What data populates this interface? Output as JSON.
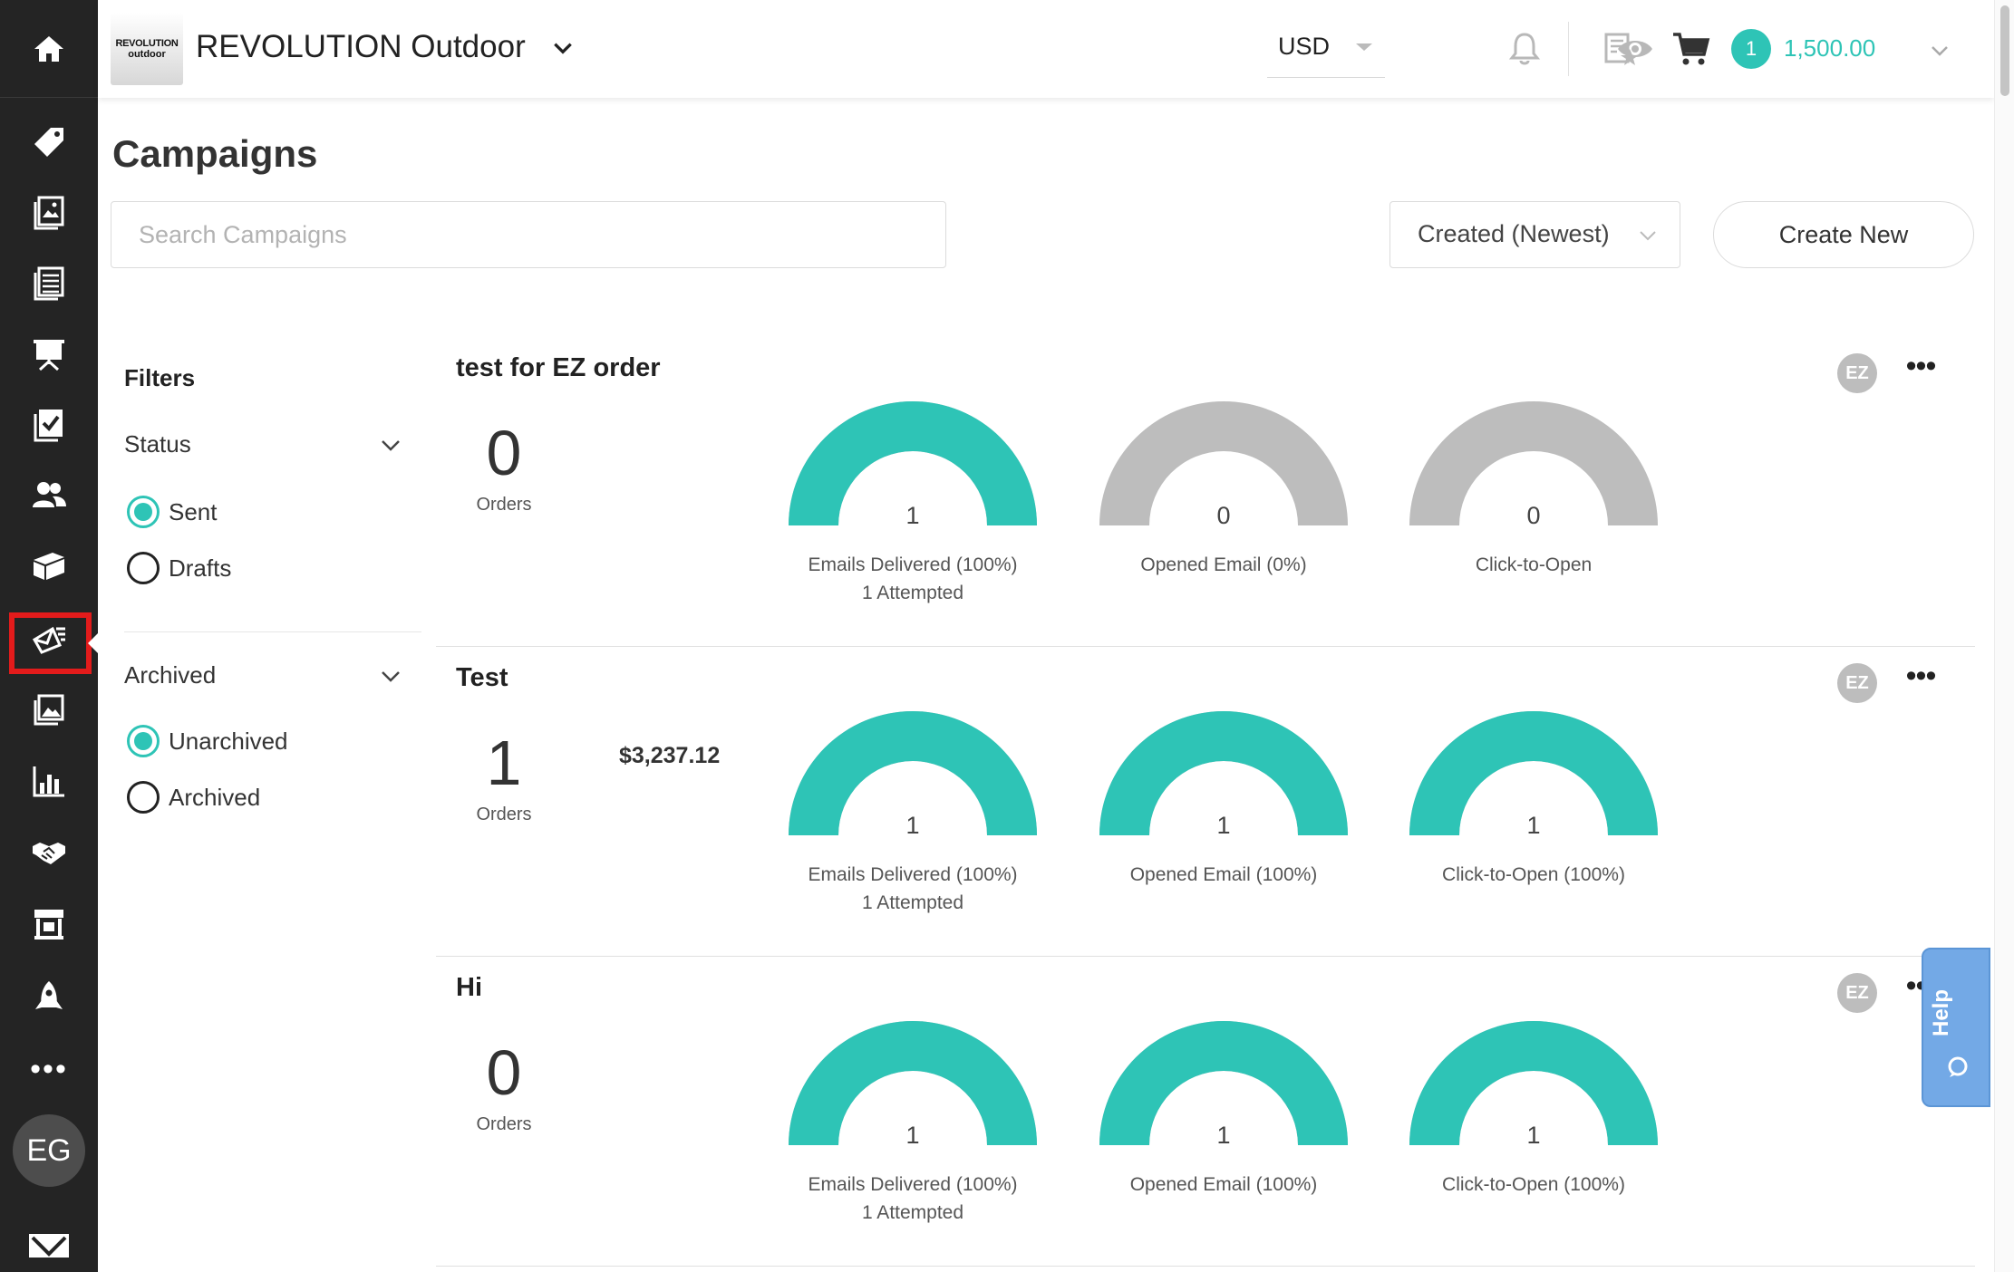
{
  "header": {
    "brand_logo_line1": "REVOLUTION",
    "brand_logo_line2": "outdoor",
    "brand_name": "REVOLUTION Outdoor",
    "currency": "USD",
    "cart_count": "1",
    "cart_total": "1,500.00"
  },
  "sidebar": {
    "active_item": "campaigns",
    "items": [
      "home",
      "tag",
      "catalog",
      "list",
      "presentation",
      "checklist",
      "contacts",
      "box",
      "campaigns",
      "gallery",
      "reports",
      "partners",
      "store",
      "rocket"
    ],
    "more_label": "•••",
    "avatar_initials": "EG"
  },
  "page": {
    "title": "Campaigns",
    "search_placeholder": "Search Campaigns",
    "sort_value": "Created (Newest)",
    "create_new_label": "Create New"
  },
  "filters": {
    "title": "Filters",
    "status": {
      "label": "Status",
      "options": [
        {
          "label": "Sent",
          "selected": true
        },
        {
          "label": "Drafts",
          "selected": false
        }
      ]
    },
    "archived": {
      "label": "Archived",
      "options": [
        {
          "label": "Unarchived",
          "selected": true
        },
        {
          "label": "Archived",
          "selected": false
        }
      ]
    }
  },
  "campaigns": [
    {
      "name": "test for EZ order",
      "owner_initials": "EZ",
      "more_label": "•••",
      "orders": "0",
      "orders_label": "Orders",
      "revenue": "",
      "gauges": [
        {
          "value": "1",
          "label": "Emails Delivered (100%)",
          "sub": "1 Attempted",
          "fill": 1.0
        },
        {
          "value": "0",
          "label": "Opened Email (0%)",
          "sub": "",
          "fill": 0.0
        },
        {
          "value": "0",
          "label": "Click-to-Open",
          "sub": "",
          "fill": 0.0
        }
      ]
    },
    {
      "name": "Test",
      "owner_initials": "EZ",
      "more_label": "•••",
      "orders": "1",
      "orders_label": "Orders",
      "revenue": "$3,237.12",
      "gauges": [
        {
          "value": "1",
          "label": "Emails Delivered (100%)",
          "sub": "1 Attempted",
          "fill": 1.0
        },
        {
          "value": "1",
          "label": "Opened Email (100%)",
          "sub": "",
          "fill": 1.0
        },
        {
          "value": "1",
          "label": "Click-to-Open (100%)",
          "sub": "",
          "fill": 1.0
        }
      ]
    },
    {
      "name": "Hi",
      "owner_initials": "EZ",
      "more_label": "•••",
      "orders": "0",
      "orders_label": "Orders",
      "revenue": "",
      "gauges": [
        {
          "value": "1",
          "label": "Emails Delivered (100%)",
          "sub": "1 Attempted",
          "fill": 1.0
        },
        {
          "value": "1",
          "label": "Opened Email (100%)",
          "sub": "",
          "fill": 1.0
        },
        {
          "value": "1",
          "label": "Click-to-Open (100%)",
          "sub": "",
          "fill": 1.0
        }
      ]
    }
  ],
  "help": {
    "label": "Help"
  },
  "colors": {
    "accent": "#2ec4b6",
    "gauge_empty": "#bdbdbd",
    "sidebar_bg": "#242424",
    "active_highlight": "#e31b1b",
    "help_bg": "#73a9e6"
  }
}
